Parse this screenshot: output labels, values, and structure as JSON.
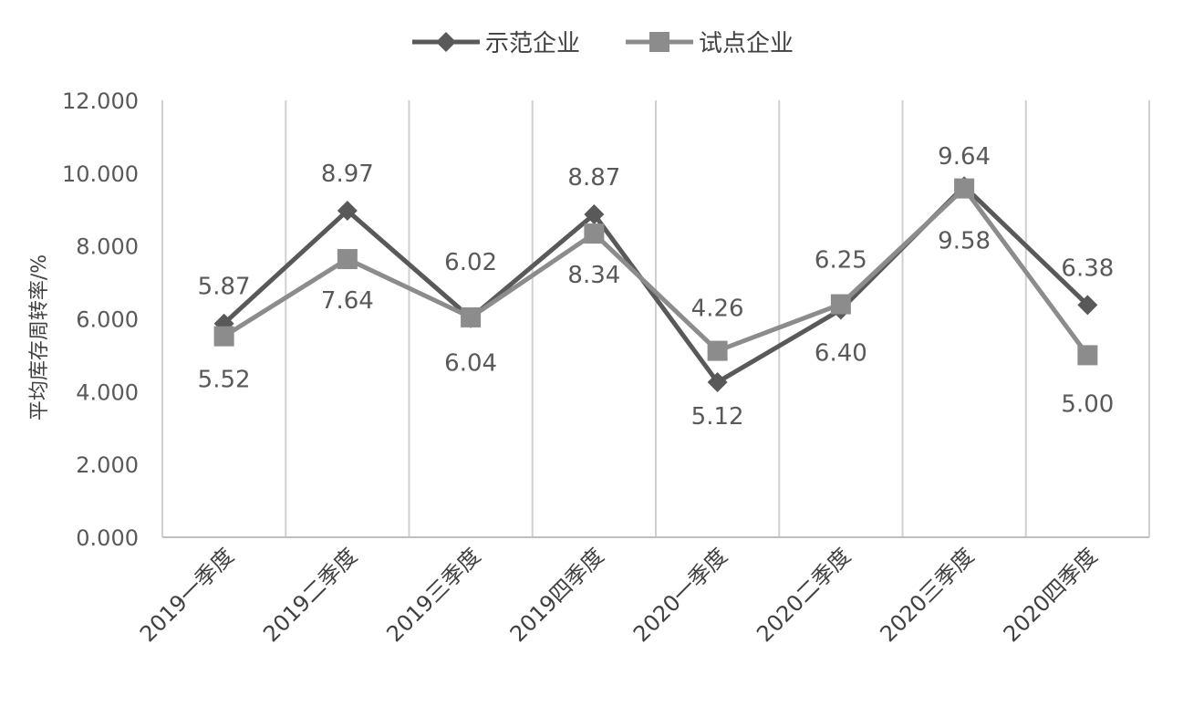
{
  "chart_data": {
    "type": "line",
    "title": "",
    "xlabel": "",
    "ylabel": "平均库存周转率/%",
    "ylim": [
      0,
      12
    ],
    "yticks": [
      "0.000",
      "2.000",
      "4.000",
      "6.000",
      "8.000",
      "10.000",
      "12.000"
    ],
    "grid": "vertical",
    "legend": "top",
    "categories": [
      "2019一季度",
      "2019二季度",
      "2019三季度",
      "2019四季度",
      "2020一季度",
      "2020二季度",
      "2020三季度",
      "2020四季度"
    ],
    "series": [
      {
        "name": "示范企业",
        "marker": "diamond",
        "color": "#595959",
        "values": [
          5.87,
          8.97,
          6.02,
          8.87,
          4.26,
          6.25,
          9.64,
          6.38
        ],
        "labels": [
          "5.87",
          "8.97",
          "6.02",
          "8.87",
          "4.26",
          "6.25",
          "9.64",
          "6.38"
        ]
      },
      {
        "name": "试点企业",
        "marker": "square",
        "color": "#8c8c8c",
        "values": [
          5.52,
          7.64,
          6.04,
          8.34,
          5.12,
          6.4,
          9.58,
          5.0
        ],
        "labels": [
          "5.52",
          "7.64",
          "6.04",
          "8.34",
          "5.12",
          "6.40",
          "9.58",
          "5.00"
        ]
      }
    ]
  }
}
